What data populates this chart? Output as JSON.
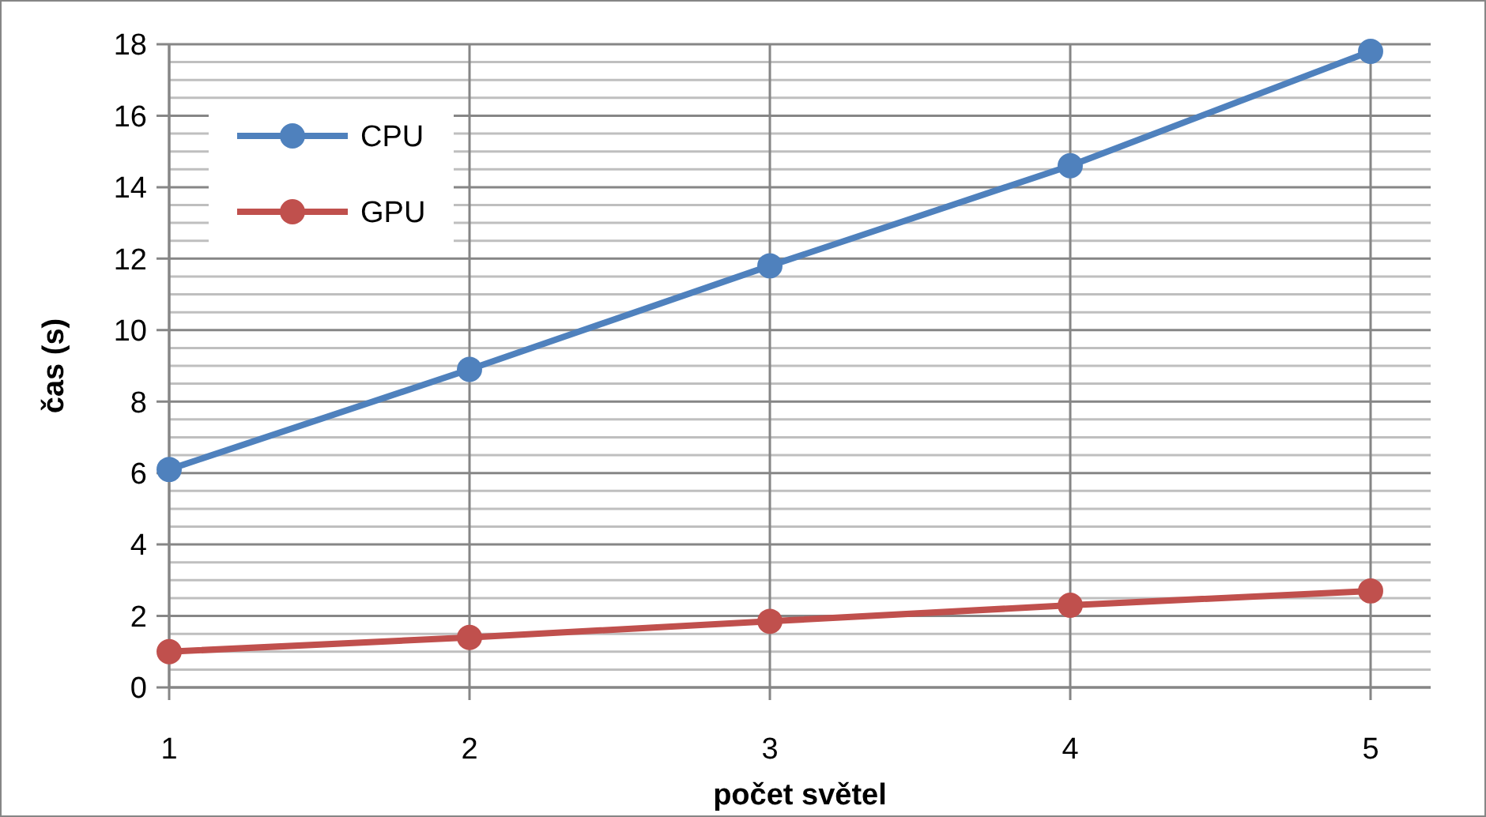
{
  "chart_data": {
    "type": "line",
    "xlabel": "počet světel",
    "ylabel": "čas (s)",
    "x": [
      1,
      2,
      3,
      4,
      5
    ],
    "xlim": [
      1,
      5.2
    ],
    "xticks": [
      1,
      2,
      3,
      4,
      5
    ],
    "ylim": [
      0,
      18
    ],
    "yticks": [
      0,
      {
        "value": 0.5,
        "label": null
      },
      {
        "value": 1,
        "label": null
      },
      {
        "value": 1.5,
        "label": null
      },
      2,
      {
        "value": 2.5,
        "label": null
      },
      {
        "value": 3,
        "label": null
      },
      {
        "value": 3.5,
        "label": null
      },
      4,
      {
        "value": 4.5,
        "label": null
      },
      {
        "value": 5,
        "label": null
      },
      {
        "value": 5.5,
        "label": null
      },
      6,
      {
        "value": 6.5,
        "label": null
      },
      {
        "value": 7,
        "label": null
      },
      {
        "value": 7.5,
        "label": null
      },
      8,
      {
        "value": 8.5,
        "label": null
      },
      {
        "value": 9,
        "label": null
      },
      {
        "value": 9.5,
        "label": null
      },
      10,
      {
        "value": 10.5,
        "label": null
      },
      {
        "value": 11,
        "label": null
      },
      {
        "value": 11.5,
        "label": null
      },
      12,
      {
        "value": 12.5,
        "label": null
      },
      {
        "value": 13,
        "label": null
      },
      {
        "value": 13.5,
        "label": null
      },
      14,
      {
        "value": 14.5,
        "label": null
      },
      {
        "value": 15,
        "label": null
      },
      {
        "value": 15.5,
        "label": null
      },
      16,
      {
        "value": 16.5,
        "label": null
      },
      {
        "value": 17,
        "label": null
      },
      {
        "value": 17.5,
        "label": null
      },
      18
    ],
    "series": [
      {
        "name": "CPU",
        "color": "#4f81bd",
        "values": [
          6.1,
          8.9,
          11.8,
          14.6,
          17.8
        ]
      },
      {
        "name": "GPU",
        "color": "#c0504d",
        "values": [
          1.0,
          1.4,
          1.85,
          2.3,
          2.7
        ]
      }
    ],
    "grid": true,
    "legend": "top left",
    "marker": "circle",
    "line_style": "solid"
  }
}
